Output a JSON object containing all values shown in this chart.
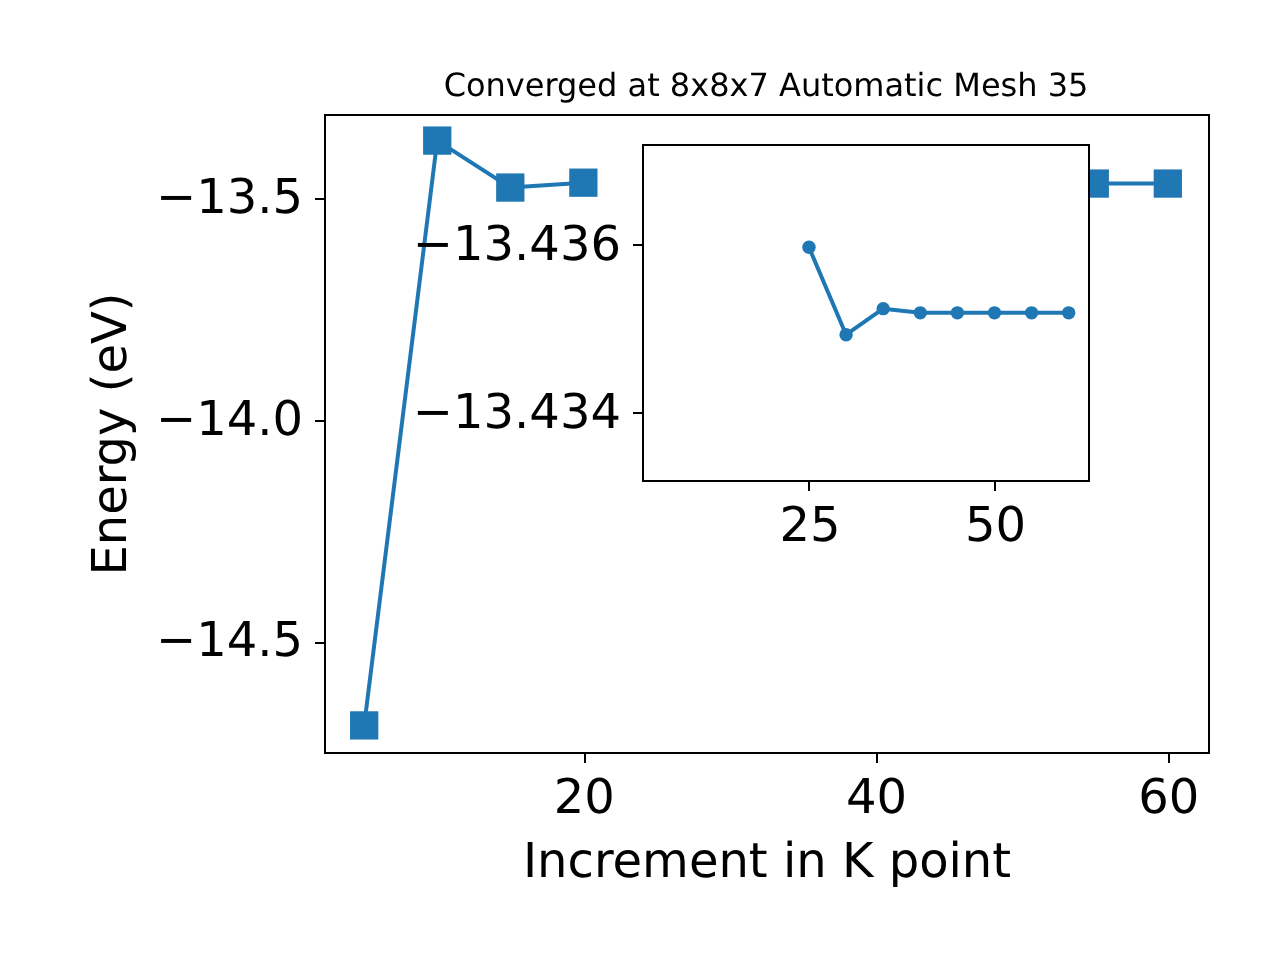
{
  "chart_data": [
    {
      "type": "line",
      "title": "Converged at 8x8x7 Automatic Mesh 35",
      "xlabel": "Increment in K point",
      "ylabel": "Energy (eV)",
      "x": [
        5,
        10,
        15,
        20,
        25,
        30,
        35,
        40,
        45,
        50,
        55,
        60
      ],
      "series": [
        {
          "color": "#1f77b4",
          "values": [
            -14.69,
            -13.37,
            -13.476,
            -13.465,
            null,
            null,
            null,
            null,
            null,
            null,
            -13.467,
            -13.467
          ]
        }
      ],
      "xlim": [
        2.25,
        62.75
      ],
      "ylim": [
        -14.75,
        -13.31
      ],
      "xticks": [
        20,
        40,
        60
      ],
      "yticks": [
        -14.5,
        {
          "value": -14.0,
          "label": "−14.0"
        },
        -13.5
      ],
      "marker": "square",
      "line_style": "solid"
    },
    {
      "type": "line",
      "x": [
        25,
        30,
        35,
        40,
        45,
        50,
        55,
        60
      ],
      "series": [
        {
          "color": "#1f77b4",
          "values": [
            -13.43597,
            -13.43493,
            -13.43524,
            -13.43519,
            -13.43519,
            -13.43519,
            -13.43519,
            -13.43519
          ]
        }
      ],
      "xlim": [
        2.5,
        62.6
      ],
      "ylim": [
        -13.4332,
        -13.4372
      ],
      "xticks": [
        25,
        50
      ],
      "yticks": [
        -13.436,
        -13.434
      ],
      "marker": "circle",
      "line_style": "solid"
    }
  ]
}
